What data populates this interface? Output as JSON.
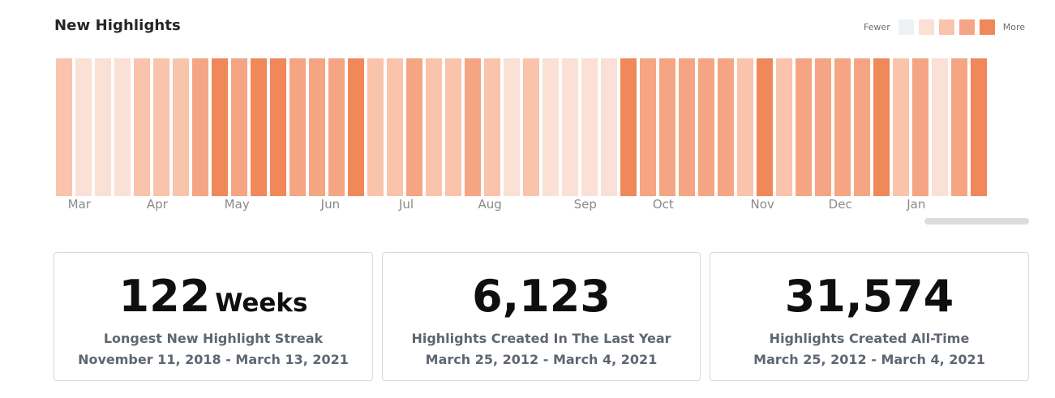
{
  "section": {
    "title": "New Highlights"
  },
  "legend": {
    "fewer_label": "Fewer",
    "more_label": "More",
    "colors": [
      "#eef1f6",
      "#fbe0d6",
      "#f9c3ac",
      "#f5a583",
      "#f0885a"
    ]
  },
  "heatmap": {
    "levels": [
      2,
      1,
      1,
      1,
      2,
      2,
      2,
      3,
      4,
      3,
      4,
      4,
      3,
      3,
      3,
      4,
      2,
      2,
      3,
      2,
      2,
      3,
      2,
      1,
      2,
      1,
      1,
      1,
      1,
      4,
      3,
      3,
      3,
      3,
      3,
      2,
      4,
      2,
      3,
      3,
      3,
      3,
      4,
      2,
      3,
      1,
      3,
      4
    ],
    "months": [
      {
        "label": "Mar",
        "week": 1.2
      },
      {
        "label": "Apr",
        "week": 5.2
      },
      {
        "label": "May",
        "week": 9.3
      },
      {
        "label": "Jun",
        "week": 14.1
      },
      {
        "label": "Jul",
        "week": 18.0
      },
      {
        "label": "Aug",
        "week": 22.3
      },
      {
        "label": "Sep",
        "week": 27.2
      },
      {
        "label": "Oct",
        "week": 31.2
      },
      {
        "label": "Nov",
        "week": 36.3
      },
      {
        "label": "Dec",
        "week": 40.3
      },
      {
        "label": "Jan",
        "week": 44.2
      }
    ]
  },
  "stats": [
    {
      "value": "122",
      "unit": "Weeks",
      "label": "Longest New Highlight Streak",
      "range": "November 11, 2018 - March 13, 2021"
    },
    {
      "value": "6,123",
      "unit": "",
      "label": "Highlights Created In The Last Year",
      "range": "March 25, 2012 - March 4, 2021"
    },
    {
      "value": "31,574",
      "unit": "",
      "label": "Highlights Created All-Time",
      "range": "March 25, 2012 - March 4, 2021"
    }
  ]
}
